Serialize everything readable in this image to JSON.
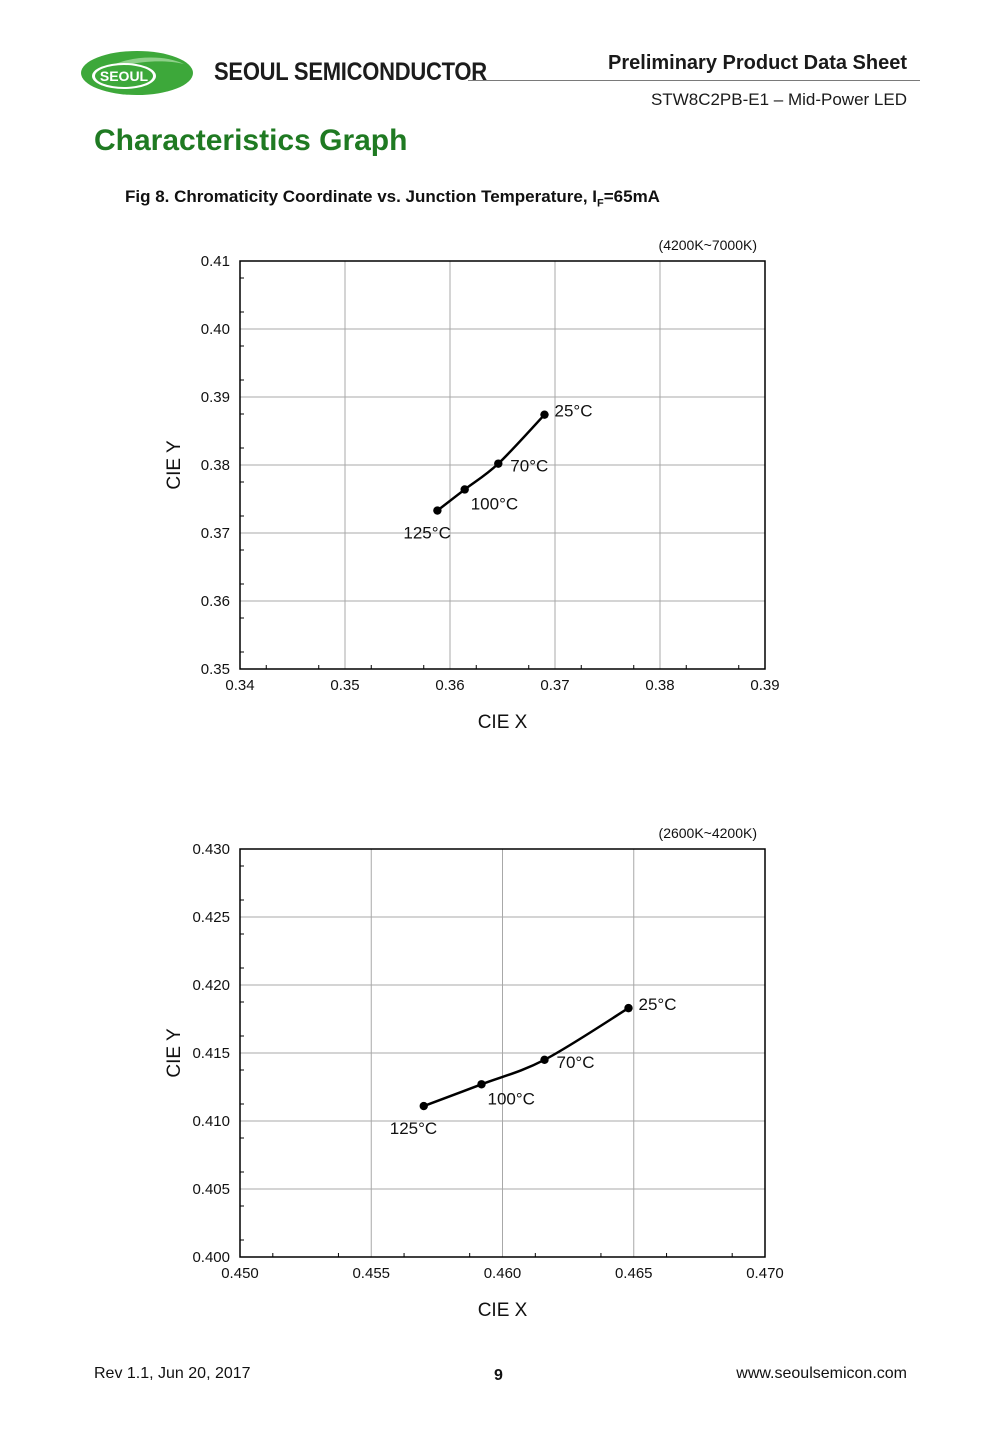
{
  "header": {
    "logo_text": "SEOUL",
    "company": "SEOUL SEMICONDUCTOR",
    "doc_type": "Preliminary Product Data Sheet",
    "doc_sub": "STW8C2PB-E1 – Mid-Power LED"
  },
  "section_title": "Characteristics Graph",
  "figure": {
    "title_pre": "Fig 8. Chromaticity Coordinate vs. Junction Temperature, I",
    "title_sub": "F",
    "title_post": "=65mA"
  },
  "chart_data": [
    {
      "type": "line",
      "range_label": "(4200K~7000K)",
      "xlabel": "CIE X",
      "ylabel": "CIE Y",
      "xlim": [
        0.34,
        0.39
      ],
      "ylim": [
        0.35,
        0.41
      ],
      "x_ticks": [
        "0.34",
        "0.35",
        "0.36",
        "0.37",
        "0.38",
        "0.39"
      ],
      "y_ticks": [
        "0.35",
        "0.36",
        "0.37",
        "0.38",
        "0.39",
        "0.40",
        "0.41"
      ],
      "grid": true,
      "points": [
        {
          "label": "125",
          "x": 0.3588,
          "y": 0.3733
        },
        {
          "label": "100",
          "x": 0.3614,
          "y": 0.3764
        },
        {
          "label": "70",
          "x": 0.3646,
          "y": 0.3802
        },
        {
          "label": "25",
          "x": 0.369,
          "y": 0.3874
        }
      ],
      "unit": "°C"
    },
    {
      "type": "line",
      "range_label": "(2600K~4200K)",
      "xlabel": "CIE X",
      "ylabel": "CIE Y",
      "xlim": [
        0.45,
        0.47
      ],
      "ylim": [
        0.4,
        0.43
      ],
      "x_ticks": [
        "0.450",
        "0.455",
        "0.460",
        "0.465",
        "0.470"
      ],
      "y_ticks": [
        "0.400",
        "0.405",
        "0.410",
        "0.415",
        "0.420",
        "0.425",
        "0.430"
      ],
      "grid": true,
      "points": [
        {
          "label": "125",
          "x": 0.457,
          "y": 0.4111
        },
        {
          "label": "100",
          "x": 0.4592,
          "y": 0.4127
        },
        {
          "label": "70",
          "x": 0.4616,
          "y": 0.4145
        },
        {
          "label": "25",
          "x": 0.4648,
          "y": 0.4183
        }
      ],
      "unit": "°C"
    }
  ],
  "footer": {
    "rev": "Rev 1.1, Jun 20, 2017",
    "page": "9",
    "url": "www.seoulsemicon.com"
  }
}
